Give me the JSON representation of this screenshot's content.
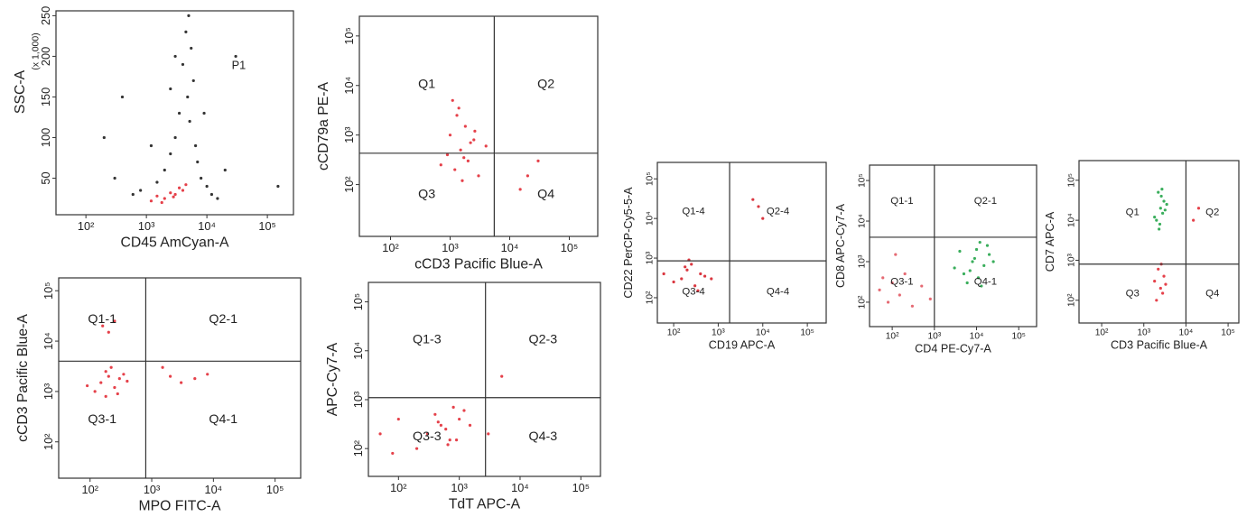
{
  "chart_data": [
    {
      "type": "scatter",
      "x_label": "CD45 AmCyan-A",
      "y_label": "SSC-A",
      "y_unit_note": "(x 1,000)",
      "annotation": "P1",
      "xscale": "log",
      "yscale": "linear",
      "xlim": [
        32,
        270000
      ],
      "ylim": [
        5,
        256
      ],
      "xticks": [
        {
          "value": 100,
          "label": "10²"
        },
        {
          "value": 1000,
          "label": "10³"
        },
        {
          "value": 10000,
          "label": "10⁴"
        },
        {
          "value": 100000,
          "label": "10⁵"
        }
      ],
      "yticks": [
        50,
        100,
        150,
        200,
        250
      ],
      "series": [
        {
          "color": "#111111",
          "x": [
            5000,
            4500,
            5500,
            4000,
            6000,
            4800,
            3500,
            5200,
            3000,
            6500,
            2500,
            7000,
            2000,
            8000,
            1500,
            10000,
            800,
            12000,
            600,
            15000,
            300,
            200,
            20000,
            400,
            30000,
            3000,
            2500,
            9000,
            1200,
            150000
          ],
          "values": [
            250,
            230,
            210,
            190,
            170,
            150,
            130,
            120,
            100,
            90,
            80,
            70,
            60,
            50,
            45,
            40,
            35,
            30,
            30,
            25,
            50,
            100,
            60,
            150,
            200,
            200,
            160,
            130,
            90,
            40
          ]
        },
        {
          "color": "#e0202a",
          "x": [
            1200,
            1500,
            2000,
            2500,
            3000,
            3500,
            4000,
            1800,
            2800,
            4500
          ],
          "values": [
            22,
            28,
            25,
            32,
            30,
            38,
            35,
            20,
            27,
            42
          ]
        }
      ]
    },
    {
      "type": "scatter",
      "x_label": "cCD3 Pacific Blue-A",
      "y_label": "cCD79a PE-A",
      "xscale": "log",
      "yscale": "log",
      "xlim": [
        30,
        300000
      ],
      "ylim": [
        9,
        250000
      ],
      "xgate": 5500,
      "ygate": 430,
      "quadrant_labels": [
        "Q1",
        "Q2",
        "Q3",
        "Q4"
      ],
      "xticks": [
        {
          "value": 100,
          "label": "10²"
        },
        {
          "value": 1000,
          "label": "10³"
        },
        {
          "value": 10000,
          "label": "10⁴"
        },
        {
          "value": 100000,
          "label": "10⁵"
        }
      ],
      "yticks": [
        {
          "value": 100,
          "label": "10²"
        },
        {
          "value": 1000,
          "label": "10³"
        },
        {
          "value": 10000,
          "label": "10⁴"
        },
        {
          "value": 100000,
          "label": "10⁵"
        }
      ],
      "series": [
        {
          "color": "#e0202a",
          "x": [
            1200,
            1500,
            2000,
            1000,
            1800,
            2500,
            3000,
            1300,
            900,
            1600,
            2200,
            1400,
            4000,
            700,
            1700,
            2600,
            20000,
            30000,
            15000,
            1100
          ],
          "values": [
            200,
            500,
            300,
            1000,
            1500,
            800,
            150,
            2500,
            400,
            120,
            700,
            3500,
            600,
            250,
            350,
            1200,
            150,
            300,
            80,
            5000
          ]
        }
      ]
    },
    {
      "type": "scatter",
      "x_label": "MPO FITC-A",
      "y_label": "cCD3 Pacific Blue-A",
      "xscale": "log",
      "yscale": "log",
      "xlim": [
        31,
        260000
      ],
      "ylim": [
        19,
        180000
      ],
      "xgate": 800,
      "ygate": 4000,
      "quadrant_labels": [
        "Q1-1",
        "Q2-1",
        "Q3-1",
        "Q4-1"
      ],
      "xticks": [
        {
          "value": 100,
          "label": "10²"
        },
        {
          "value": 1000,
          "label": "10³"
        },
        {
          "value": 10000,
          "label": "10⁴"
        },
        {
          "value": 100000,
          "label": "10⁵"
        }
      ],
      "yticks": [
        {
          "value": 100,
          "label": "10²"
        },
        {
          "value": 1000,
          "label": "10³"
        },
        {
          "value": 10000,
          "label": "10⁴"
        },
        {
          "value": 100000,
          "label": "10⁵"
        }
      ],
      "series": [
        {
          "color": "#e0202a",
          "x": [
            150,
            200,
            250,
            300,
            180,
            120,
            400,
            220,
            280,
            90,
            350,
            160,
            2000,
            3000,
            5000,
            8000,
            1500,
            200,
            250,
            180
          ],
          "values": [
            1500,
            2000,
            1200,
            1800,
            2500,
            1000,
            1600,
            3000,
            900,
            1300,
            2200,
            20000,
            2000,
            1500,
            1800,
            2200,
            3000,
            15000,
            25000,
            800
          ]
        }
      ]
    },
    {
      "type": "scatter",
      "x_label": "TdT APC-A",
      "y_label": "APC-Cy7-A",
      "xscale": "log",
      "yscale": "log",
      "xlim": [
        32,
        210000
      ],
      "ylim": [
        27,
        250000
      ],
      "xgate": 2700,
      "ygate": 1100,
      "quadrant_labels": [
        "Q1-3",
        "Q2-3",
        "Q3-3",
        "Q4-3"
      ],
      "xticks": [
        {
          "value": 100,
          "label": "10²"
        },
        {
          "value": 1000,
          "label": "10³"
        },
        {
          "value": 10000,
          "label": "10⁴"
        },
        {
          "value": 100000,
          "label": "10⁵"
        }
      ],
      "yticks": [
        {
          "value": 100,
          "label": "10²"
        },
        {
          "value": 1000,
          "label": "10³"
        },
        {
          "value": 10000,
          "label": "10⁴"
        },
        {
          "value": 100000,
          "label": "10⁵"
        }
      ],
      "series": [
        {
          "color": "#e0202a",
          "x": [
            300,
            500,
            700,
            1000,
            400,
            600,
            800,
            1500,
            200,
            900,
            50,
            80,
            100,
            3000,
            5000,
            1200,
            450,
            650
          ],
          "values": [
            200,
            300,
            150,
            400,
            500,
            250,
            700,
            300,
            100,
            150,
            200,
            80,
            400,
            200,
            3000,
            600,
            350,
            120
          ]
        }
      ]
    },
    {
      "type": "scatter",
      "x_label": "CD19 APC-A",
      "y_label": "CD22 PerCP-Cy5-5-A",
      "xscale": "log",
      "yscale": "log",
      "xlim": [
        43,
        265000
      ],
      "ylim": [
        23,
        260000
      ],
      "xgate": 1800,
      "ygate": 850,
      "quadrant_labels": [
        "Q1-4",
        "Q2-4",
        "Q3-4",
        "Q4-4"
      ],
      "xticks": [
        {
          "value": 100,
          "label": "10²"
        },
        {
          "value": 1000,
          "label": "10³"
        },
        {
          "value": 10000,
          "label": "10⁴"
        },
        {
          "value": 100000,
          "label": "10⁵"
        }
      ],
      "yticks": [
        {
          "value": 100,
          "label": "10²"
        },
        {
          "value": 1000,
          "label": "10³"
        },
        {
          "value": 10000,
          "label": "10⁴"
        },
        {
          "value": 100000,
          "label": "10⁵"
        }
      ],
      "series": [
        {
          "color": "#d4141f",
          "x": [
            150,
            200,
            300,
            400,
            250,
            100,
            500,
            180,
            350,
            60,
            8000,
            6000,
            10000,
            700,
            220
          ],
          "values": [
            300,
            500,
            200,
            400,
            700,
            250,
            350,
            600,
            150,
            400,
            20000,
            30000,
            10000,
            300,
            900
          ]
        }
      ]
    },
    {
      "type": "scatter",
      "x_label": "CD4 PE-Cy7-A",
      "y_label": "CD8 APC-Cy7-A",
      "xscale": "log",
      "yscale": "log",
      "xlim": [
        29,
        265000
      ],
      "ylim": [
        25,
        240000
      ],
      "xgate": 1000,
      "ygate": 4000,
      "quadrant_labels": [
        "Q1-1",
        "Q2-1",
        "Q3-1",
        "Q4-1"
      ],
      "xticks": [
        {
          "value": 100,
          "label": "10²"
        },
        {
          "value": 1000,
          "label": "10³"
        },
        {
          "value": 10000,
          "label": "10⁴"
        },
        {
          "value": 100000,
          "label": "10⁵"
        }
      ],
      "yticks": [
        {
          "value": 100,
          "label": "10²"
        },
        {
          "value": 1000,
          "label": "10³"
        },
        {
          "value": 10000,
          "label": "10⁴"
        },
        {
          "value": 100000,
          "label": "10⁵"
        }
      ],
      "series": [
        {
          "color": "#e0505a",
          "x": [
            50,
            80,
            100,
            150,
            300,
            500,
            200,
            800,
            120,
            60
          ],
          "values": [
            200,
            100,
            300,
            150,
            80,
            250,
            500,
            120,
            1500,
            400
          ]
        },
        {
          "color": "#18a040",
          "x": [
            5000,
            8000,
            10000,
            15000,
            20000,
            6000,
            12000,
            9000,
            7000,
            25000,
            4000,
            11000,
            3000,
            18000,
            13000
          ],
          "values": [
            500,
            1000,
            2000,
            800,
            1500,
            300,
            3000,
            1200,
            600,
            1000,
            1800,
            400,
            700,
            2500,
            250
          ]
        }
      ]
    },
    {
      "type": "scatter",
      "x_label": "CD3 Pacific Blue-A",
      "y_label": "CD7 APC-A",
      "xscale": "log",
      "yscale": "log",
      "xlim": [
        29,
        180000
      ],
      "ylim": [
        27,
        310000
      ],
      "xgate": 10000,
      "ygate": 800,
      "quadrant_labels": [
        "Q1",
        "Q2",
        "Q3",
        "Q4"
      ],
      "xticks": [
        {
          "value": 100,
          "label": "10²"
        },
        {
          "value": 1000,
          "label": "10³"
        },
        {
          "value": 10000,
          "label": "10⁴"
        },
        {
          "value": 100000,
          "label": "10⁵"
        }
      ],
      "yticks": [
        {
          "value": 100,
          "label": "10²"
        },
        {
          "value": 1000,
          "label": "10³"
        },
        {
          "value": 10000,
          "label": "10⁴"
        },
        {
          "value": 100000,
          "label": "10⁵"
        }
      ],
      "series": [
        {
          "color": "#18a040",
          "x": [
            2000,
            2500,
            3000,
            2200,
            2800,
            3500,
            2400,
            2600,
            1800,
            3200,
            2700,
            2300
          ],
          "values": [
            10000,
            20000,
            30000,
            50000,
            15000,
            25000,
            8000,
            40000,
            12000,
            18000,
            60000,
            6000
          ]
        },
        {
          "color": "#e0202a",
          "x": [
            2000,
            2500,
            3000,
            2200,
            2800,
            1800,
            2600,
            3300,
            20000,
            15000
          ],
          "values": [
            100,
            200,
            400,
            600,
            150,
            300,
            800,
            250,
            20000,
            10000
          ]
        }
      ]
    }
  ]
}
